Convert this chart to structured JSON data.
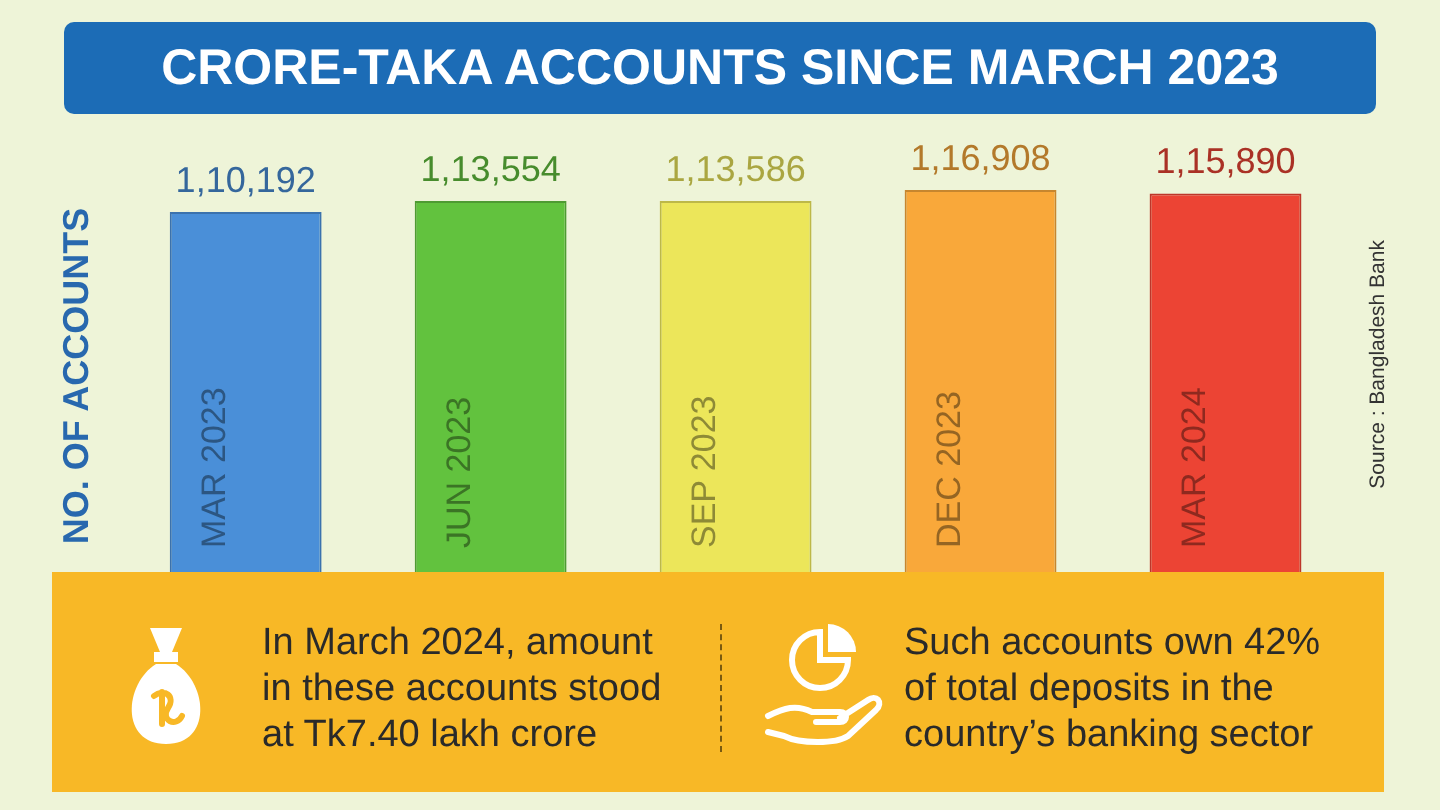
{
  "chart_data": {
    "type": "bar",
    "title": "CRORE-TAKA ACCOUNTS SINCE MARCH 2023",
    "ylabel": "NO. OF ACCOUNTS",
    "categories": [
      "MAR 2023",
      "JUN 2023",
      "SEP 2023",
      "DEC 2023",
      "MAR 2024"
    ],
    "values": [
      110192,
      113554,
      113586,
      116908,
      115890
    ],
    "value_labels": [
      "1,10,192",
      "1,13,554",
      "1,13,586",
      "1,16,908",
      "1,15,890"
    ],
    "colors": [
      "#4a8fd8",
      "#62c23e",
      "#ece65a",
      "#f9a83a",
      "#ec4434"
    ],
    "tick_labels": "x",
    "annotations": [
      "Source : Bangladesh Bank",
      "In March 2024, amount in these accounts stood at Tk7.40 lakh crore",
      "Such accounts own 42% of total deposits in the country’s banking sector"
    ]
  }
}
